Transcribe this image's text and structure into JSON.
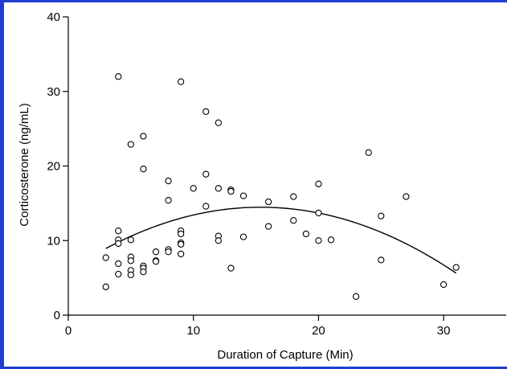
{
  "chart_data": {
    "type": "scatter",
    "title": "",
    "xlabel": "Duration of Capture (Min)",
    "ylabel": "Corticosterone  (ng/mL)",
    "xlim": [
      0,
      35
    ],
    "ylim": [
      0,
      40
    ],
    "xticks": [
      0,
      10,
      20,
      30
    ],
    "yticks": [
      0,
      10,
      20,
      30,
      40
    ],
    "grid": false,
    "colors": {
      "axis": "#000000",
      "frame": "#1f3fd0"
    },
    "points": [
      [
        3,
        3.8
      ],
      [
        3,
        7.7
      ],
      [
        4,
        32.0
      ],
      [
        4,
        11.3
      ],
      [
        4,
        10.1
      ],
      [
        4,
        9.6
      ],
      [
        4,
        6.9
      ],
      [
        4,
        5.5
      ],
      [
        5,
        22.9
      ],
      [
        5,
        10.1
      ],
      [
        5,
        7.8
      ],
      [
        5,
        7.3
      ],
      [
        5,
        6.0
      ],
      [
        5,
        5.4
      ],
      [
        6,
        24.0
      ],
      [
        6,
        19.6
      ],
      [
        6,
        6.6
      ],
      [
        6,
        6.3
      ],
      [
        6,
        5.8
      ],
      [
        7,
        8.5
      ],
      [
        7,
        7.3
      ],
      [
        7,
        7.2
      ],
      [
        8,
        18.0
      ],
      [
        8,
        15.4
      ],
      [
        8,
        8.8
      ],
      [
        8,
        8.5
      ],
      [
        9,
        31.3
      ],
      [
        9,
        11.3
      ],
      [
        9,
        10.9
      ],
      [
        9,
        9.7
      ],
      [
        9,
        9.5
      ],
      [
        9,
        8.2
      ],
      [
        10,
        17.0
      ],
      [
        11,
        27.3
      ],
      [
        11,
        18.9
      ],
      [
        11,
        14.6
      ],
      [
        12,
        25.8
      ],
      [
        12,
        17.0
      ],
      [
        12,
        10.6
      ],
      [
        12,
        10.0
      ],
      [
        13,
        16.8
      ],
      [
        13,
        16.6
      ],
      [
        13,
        6.3
      ],
      [
        14,
        16.0
      ],
      [
        14,
        10.5
      ],
      [
        16,
        15.2
      ],
      [
        16,
        11.9
      ],
      [
        18,
        15.9
      ],
      [
        18,
        12.7
      ],
      [
        19,
        10.9
      ],
      [
        20,
        17.6
      ],
      [
        20,
        13.7
      ],
      [
        20,
        10.0
      ],
      [
        21,
        10.1
      ],
      [
        23,
        2.5
      ],
      [
        24,
        21.8
      ],
      [
        25,
        13.3
      ],
      [
        25,
        7.4
      ],
      [
        27,
        15.9
      ],
      [
        30,
        4.1
      ],
      [
        31,
        6.4
      ]
    ],
    "fit_curve": {
      "type": "quadratic",
      "x_range": [
        3,
        31
      ],
      "points": [
        [
          3,
          8.9
        ],
        [
          5,
          10.5
        ],
        [
          10,
          13.5
        ],
        [
          15,
          14.6
        ],
        [
          16,
          14.6
        ],
        [
          20,
          13.6
        ],
        [
          25,
          10.8
        ],
        [
          31,
          5.8
        ]
      ]
    }
  }
}
